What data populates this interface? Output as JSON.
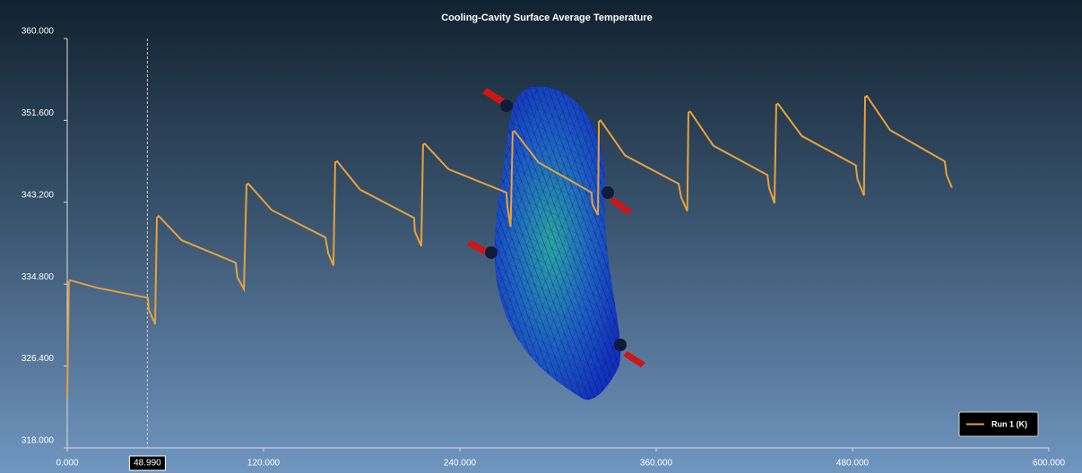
{
  "chart_data": {
    "type": "line",
    "title": "Cooling-Cavity Surface Average Temperature",
    "x": [
      0,
      1,
      1.6,
      19,
      49.3,
      49.8,
      53.7,
      54.8,
      55.9,
      70,
      103,
      104,
      108,
      109.6,
      110.7,
      125,
      157.8,
      159.5,
      162.7,
      163.8,
      165,
      179,
      212,
      212.5,
      216.4,
      217.5,
      218.6,
      233,
      268.5,
      269,
      271,
      272.3,
      273.4,
      288,
      320.5,
      321,
      324.4,
      325,
      326,
      341,
      373.7,
      375.3,
      379,
      379.7,
      380.8,
      395,
      428,
      429,
      432.3,
      433.4,
      434.5,
      449,
      482,
      483,
      487,
      487.7,
      488.8,
      503,
      536.4,
      537.5,
      540.8
    ],
    "series": [
      {
        "name": "Run 1 (K)",
        "color": "#e8a13a",
        "values": [
          323.2,
          335.0,
          335.2,
          334.4,
          333.4,
          332.2,
          330.7,
          341.6,
          341.8,
          339.3,
          337.0,
          335.5,
          334.3,
          345.0,
          345.1,
          342.4,
          339.6,
          338.0,
          336.7,
          347.3,
          347.4,
          344.5,
          341.6,
          340.2,
          338.7,
          349.1,
          349.2,
          346.6,
          344.2,
          342.8,
          340.7,
          350.4,
          350.5,
          347.3,
          344.2,
          343.0,
          341.9,
          351.5,
          351.6,
          348.0,
          345.1,
          343.7,
          342.3,
          352.4,
          352.5,
          349.0,
          346.0,
          344.7,
          343.1,
          353.2,
          353.3,
          350.0,
          347.0,
          345.6,
          343.9,
          354.0,
          354.1,
          350.6,
          347.4,
          346.0,
          344.7
        ]
      }
    ],
    "xlim": [
      0,
      600
    ],
    "xticks": [
      {
        "value": 0,
        "label": "0.000"
      },
      {
        "value": 120,
        "label": "120.000"
      },
      {
        "value": 240,
        "label": "240.000"
      },
      {
        "value": 360,
        "label": "360.000"
      },
      {
        "value": 480,
        "label": "480.000"
      },
      {
        "value": 600,
        "label": "600.000"
      }
    ],
    "ylim": [
      318,
      360
    ],
    "yticks": [
      {
        "value": 318,
        "label": "318.000"
      },
      {
        "value": 326.4,
        "label": "326.400"
      },
      {
        "value": 334.8,
        "label": "334.800"
      },
      {
        "value": 343.2,
        "label": "343.200"
      },
      {
        "value": 351.6,
        "label": "351.600"
      },
      {
        "value": 360,
        "label": "360.000"
      }
    ],
    "cursor": {
      "value": 48.99,
      "label": "48.990"
    },
    "legend": "bottom-right"
  }
}
